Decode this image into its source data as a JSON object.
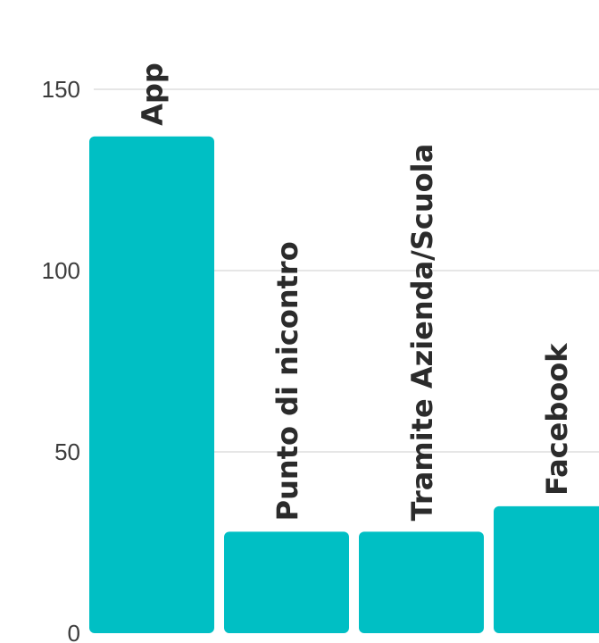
{
  "chart_data": {
    "type": "bar",
    "categories": [
      "App",
      "Punto di nicontro",
      "Tramite Azienda/Scuola",
      "Facebook"
    ],
    "values": [
      137,
      28,
      28,
      35
    ],
    "yticks": [
      0,
      50,
      100,
      150
    ],
    "ylim": [
      0,
      150
    ],
    "grid": true,
    "bar_color": "#00bfc4",
    "title": "",
    "xlabel": "",
    "ylabel": ""
  }
}
